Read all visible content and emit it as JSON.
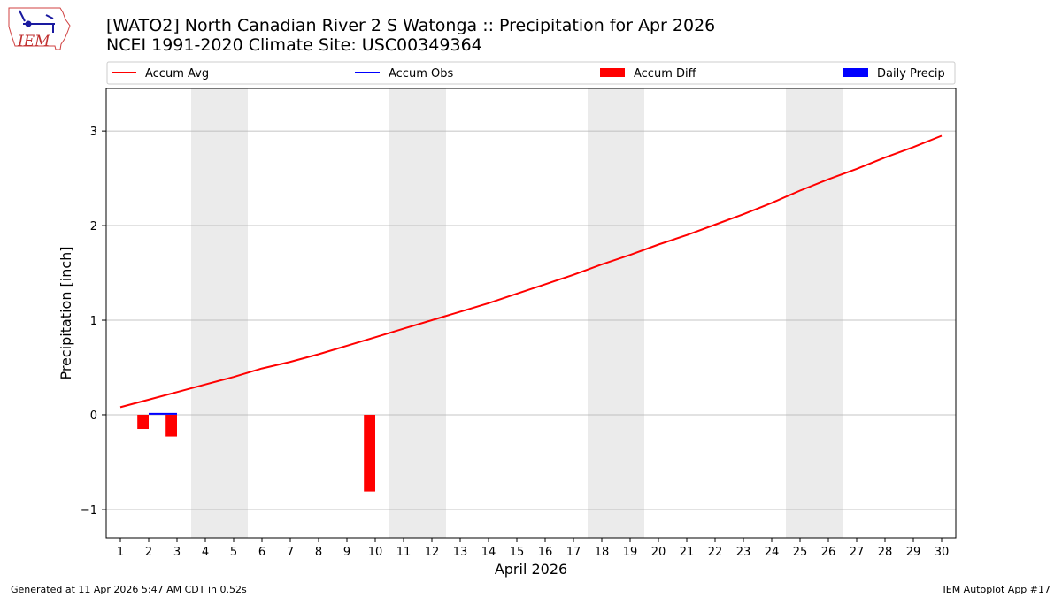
{
  "logo": {
    "text": "IEM"
  },
  "chart_data": {
    "type": "line",
    "title": "[WATO2] North Canadian River 2 S Watonga :: Precipitation for Apr 2026",
    "subtitle": "NCEI 1991-2020 Climate Site: USC00349364",
    "xlabel": "April 2026",
    "ylabel": "Precipitation [inch]",
    "x": [
      1,
      2,
      3,
      4,
      5,
      6,
      7,
      8,
      9,
      10,
      11,
      12,
      13,
      14,
      15,
      16,
      17,
      18,
      19,
      20,
      21,
      22,
      23,
      24,
      25,
      26,
      27,
      28,
      29,
      30
    ],
    "xlim": [
      0.5,
      30.5
    ],
    "ylim": [
      -1.3,
      3.45
    ],
    "yticks": [
      -1,
      0,
      1,
      2,
      3
    ],
    "ytick_labels": [
      "−1",
      "0",
      "1",
      "2",
      "3"
    ],
    "grid": "horizontal",
    "legend": {
      "placement": "top",
      "entries": [
        {
          "label": "Accum Avg",
          "color": "#ff0000",
          "kind": "line"
        },
        {
          "label": "Accum Obs",
          "color": "#0000ff",
          "kind": "line"
        },
        {
          "label": "Accum Diff",
          "color": "#ff0000",
          "kind": "bar"
        },
        {
          "label": "Daily Precip",
          "color": "#0000ff",
          "kind": "bar"
        }
      ]
    },
    "weekend_shading": [
      [
        4,
        5
      ],
      [
        11,
        12
      ],
      [
        18,
        19
      ],
      [
        25,
        26
      ]
    ],
    "series": [
      {
        "name": "Accum Avg",
        "type": "line",
        "color": "#ff0000",
        "x": [
          1,
          2,
          3,
          4,
          5,
          6,
          7,
          8,
          9,
          10,
          11,
          12,
          13,
          14,
          15,
          16,
          17,
          18,
          19,
          20,
          21,
          22,
          23,
          24,
          25,
          26,
          27,
          28,
          29,
          30
        ],
        "values": [
          0.08,
          0.16,
          0.24,
          0.32,
          0.4,
          0.49,
          0.56,
          0.64,
          0.73,
          0.82,
          0.91,
          1.0,
          1.09,
          1.18,
          1.28,
          1.38,
          1.48,
          1.59,
          1.69,
          1.8,
          1.9,
          2.01,
          2.12,
          2.24,
          2.37,
          2.49,
          2.6,
          2.72,
          2.83,
          2.95
        ]
      },
      {
        "name": "Accum Obs",
        "type": "line",
        "color": "#0000ff",
        "x": [
          2,
          3
        ],
        "values": [
          0.01,
          0.01
        ]
      },
      {
        "name": "Accum Diff",
        "type": "bar",
        "color": "#ff0000",
        "bar_offset": -0.2,
        "x": [
          2,
          3,
          10
        ],
        "values": [
          -0.15,
          -0.23,
          -0.81
        ]
      },
      {
        "name": "Daily Precip",
        "type": "bar",
        "color": "#0000ff",
        "bar_offset": 0.2,
        "x": [],
        "values": []
      }
    ]
  },
  "footer": {
    "generated": "Generated at 11 Apr 2026 5:47 AM CDT in 0.52s",
    "app": "IEM Autoplot App #17"
  }
}
